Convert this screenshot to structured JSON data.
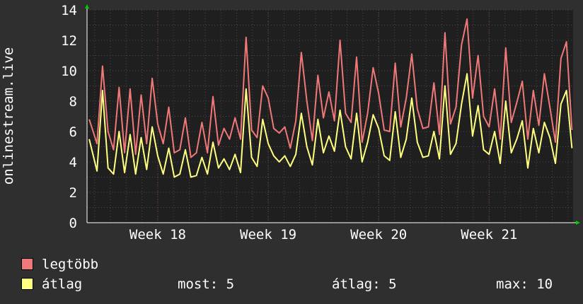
{
  "chart_data": {
    "type": "line",
    "ylabel": "onlinestream.live",
    "ylim": [
      0,
      14
    ],
    "yticks": [
      0,
      2,
      4,
      6,
      8,
      10,
      12,
      14
    ],
    "xlim": [
      17.36,
      21.76
    ],
    "xticks": [
      {
        "label": "Week 18",
        "x": 18.0
      },
      {
        "label": "Week 19",
        "x": 19.0
      },
      {
        "label": "Week 20",
        "x": 20.0
      },
      {
        "label": "Week 21",
        "x": 21.0
      }
    ],
    "grid": true,
    "colors": {
      "background": "#2f2f2f",
      "plot": "#1f1f1f",
      "grid": "#4a4a4a",
      "axis": "#ffffff",
      "arrow": "#00cc00"
    },
    "series": [
      {
        "name": "legtöbb",
        "color": "#f07878",
        "x": [
          17.38,
          17.45,
          17.5,
          17.55,
          17.6,
          17.65,
          17.7,
          17.75,
          17.8,
          17.85,
          17.9,
          17.95,
          18.0,
          18.05,
          18.1,
          18.15,
          18.2,
          18.25,
          18.3,
          18.35,
          18.4,
          18.45,
          18.5,
          18.55,
          18.6,
          18.65,
          18.7,
          18.75,
          18.8,
          18.85,
          18.9,
          18.95,
          19.0,
          19.05,
          19.1,
          19.15,
          19.2,
          19.25,
          19.3,
          19.35,
          19.4,
          19.45,
          19.5,
          19.55,
          19.6,
          19.65,
          19.7,
          19.75,
          19.8,
          19.85,
          19.9,
          19.95,
          20.0,
          20.05,
          20.1,
          20.15,
          20.2,
          20.25,
          20.3,
          20.35,
          20.4,
          20.45,
          20.5,
          20.55,
          20.6,
          20.65,
          20.7,
          20.75,
          20.8,
          20.85,
          20.9,
          20.95,
          21.0,
          21.05,
          21.1,
          21.15,
          21.2,
          21.25,
          21.3,
          21.35,
          21.4,
          21.45,
          21.5,
          21.55,
          21.6,
          21.65,
          21.7,
          21.75
        ],
        "values": [
          6.8,
          5.2,
          10.3,
          6.0,
          4.8,
          8.9,
          4.6,
          8.8,
          4.5,
          8.4,
          5.2,
          9.5,
          6.5,
          5.2,
          7.6,
          4.6,
          4.8,
          6.9,
          4.3,
          4.6,
          6.6,
          4.6,
          8.3,
          5.1,
          6.2,
          5.5,
          6.9,
          5.5,
          12.2,
          6.1,
          5.6,
          9.0,
          8.2,
          6.2,
          5.9,
          6.3,
          4.9,
          6.7,
          11.2,
          8.0,
          5.4,
          9.7,
          6.9,
          8.6,
          6.7,
          12.0,
          7.2,
          6.6,
          10.9,
          5.3,
          7.2,
          10.2,
          8.5,
          6.1,
          6.0,
          10.5,
          6.3,
          8.2,
          11.1,
          7.5,
          6.2,
          6.3,
          9.2,
          5.8,
          12.5,
          6.5,
          7.6,
          11.7,
          13.4,
          8.2,
          11.0,
          7.0,
          6.3,
          8.8,
          5.5,
          11.5,
          6.6,
          7.9,
          9.3,
          5.5,
          8.7,
          6.4,
          9.8,
          7.6,
          5.3,
          10.8,
          11.9,
          6.1
        ]
      },
      {
        "name": "átlag",
        "color": "#ffff80",
        "x": [
          17.38,
          17.45,
          17.5,
          17.55,
          17.6,
          17.65,
          17.7,
          17.75,
          17.8,
          17.85,
          17.9,
          17.95,
          18.0,
          18.05,
          18.1,
          18.15,
          18.2,
          18.25,
          18.3,
          18.35,
          18.4,
          18.45,
          18.5,
          18.55,
          18.6,
          18.65,
          18.7,
          18.75,
          18.8,
          18.85,
          18.9,
          18.95,
          19.0,
          19.05,
          19.1,
          19.15,
          19.2,
          19.25,
          19.3,
          19.35,
          19.4,
          19.45,
          19.5,
          19.55,
          19.6,
          19.65,
          19.7,
          19.75,
          19.8,
          19.85,
          19.9,
          19.95,
          20.0,
          20.05,
          20.1,
          20.15,
          20.2,
          20.25,
          20.3,
          20.35,
          20.4,
          20.45,
          20.5,
          20.55,
          20.6,
          20.65,
          20.7,
          20.75,
          20.8,
          20.85,
          20.9,
          20.95,
          21.0,
          21.05,
          21.1,
          21.15,
          21.2,
          21.25,
          21.3,
          21.35,
          21.4,
          21.45,
          21.5,
          21.55,
          21.6,
          21.65,
          21.7,
          21.75
        ],
        "values": [
          5.5,
          3.4,
          8.7,
          3.6,
          3.2,
          6.0,
          3.3,
          5.8,
          3.2,
          5.6,
          3.5,
          6.3,
          4.4,
          3.2,
          4.9,
          3.0,
          3.2,
          4.8,
          3.0,
          3.1,
          4.3,
          3.2,
          5.3,
          3.6,
          4.2,
          3.5,
          4.5,
          3.3,
          8.8,
          4.3,
          3.7,
          6.8,
          5.2,
          4.4,
          4.0,
          4.4,
          3.7,
          4.5,
          7.2,
          5.0,
          3.8,
          6.8,
          4.6,
          5.7,
          4.7,
          7.4,
          5.0,
          4.2,
          7.2,
          4.0,
          5.3,
          7.1,
          6.2,
          4.4,
          4.1,
          7.3,
          4.3,
          5.5,
          8.2,
          5.3,
          4.3,
          4.4,
          6.0,
          4.2,
          9.0,
          4.5,
          5.2,
          7.8,
          9.8,
          5.7,
          7.7,
          4.8,
          4.5,
          6.0,
          3.9,
          8.0,
          4.6,
          5.5,
          6.7,
          3.6,
          6.2,
          4.6,
          6.6,
          5.6,
          3.9,
          7.8,
          8.7,
          4.9
        ]
      }
    ],
    "legend": [
      {
        "label": "legtöbb",
        "color": "#f07878"
      },
      {
        "label": "átlag",
        "color": "#ffff80"
      }
    ],
    "stats": {
      "most": "most: 5",
      "atlag": "átlag: 5",
      "max": "max: 10"
    }
  }
}
